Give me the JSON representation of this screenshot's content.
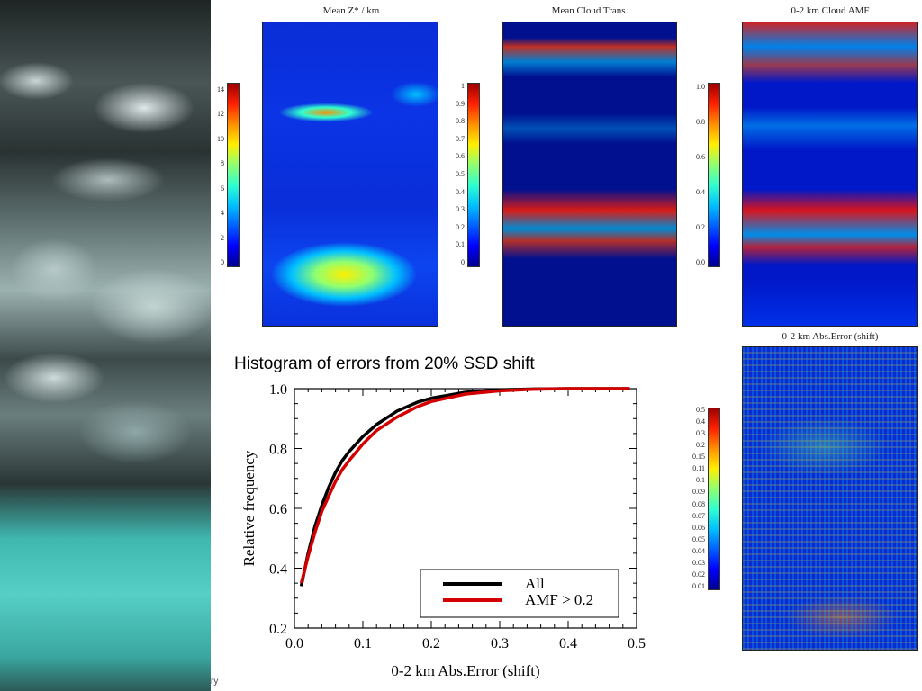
{
  "panels": {
    "mean_z": {
      "title": "Mean Z* / km",
      "ticks": [
        "14",
        "12",
        "10",
        "8",
        "6",
        "4",
        "2",
        "0"
      ]
    },
    "cloud_trans": {
      "title": "Mean Cloud Trans.",
      "ticks": [
        "1",
        "0.9",
        "0.8",
        "0.7",
        "0.6",
        "0.5",
        "0.4",
        "0.3",
        "0.2",
        "0.1",
        "0"
      ]
    },
    "cloud_amf": {
      "title": "0-2 km Cloud AMF",
      "ticks": [
        "1.0",
        "0.8",
        "0.6",
        "0.4",
        "0.2",
        "0.0"
      ]
    },
    "abs_error": {
      "title": "0-2 km Abs.Error (shift)",
      "ticks": [
        "0.5",
        "0.4",
        "0.3",
        "0.2",
        "0.15",
        "0.11",
        "0.1",
        "0.09",
        "0.08",
        "0.07",
        "0.06",
        "0.05",
        "0.04",
        "0.03",
        "0.02",
        "0.01"
      ]
    }
  },
  "colors": {
    "jet": [
      "#00008f",
      "#0000ff",
      "#0060ff",
      "#00c0ff",
      "#30ffcf",
      "#90ff70",
      "#ffef00",
      "#ff8f00",
      "#ff2000",
      "#9f0000"
    ]
  },
  "satellite_fragment": "ry",
  "chart_data": {
    "type": "line",
    "title": "Histogram of errors from 20% SSD shift",
    "xlabel": "0-2 km Abs.Error (shift)",
    "ylabel": "Relative frequency",
    "xlim": [
      0,
      0.5
    ],
    "ylim": [
      0.2,
      1.0
    ],
    "xticks": [
      "0.0",
      "0.1",
      "0.2",
      "0.3",
      "0.4",
      "0.5"
    ],
    "yticks": [
      "0.2",
      "0.4",
      "0.6",
      "0.8",
      "1.0"
    ],
    "legend_position": "bottom-right",
    "series": [
      {
        "name": "All",
        "color": "#000000",
        "x": [
          0.01,
          0.02,
          0.03,
          0.04,
          0.05,
          0.06,
          0.07,
          0.08,
          0.1,
          0.12,
          0.15,
          0.18,
          0.2,
          0.25,
          0.3,
          0.35,
          0.4,
          0.45,
          0.49
        ],
        "y": [
          0.34,
          0.45,
          0.54,
          0.61,
          0.67,
          0.72,
          0.76,
          0.79,
          0.84,
          0.88,
          0.925,
          0.955,
          0.968,
          0.988,
          0.996,
          0.999,
          1.0,
          1.0,
          1.0
        ]
      },
      {
        "name": "AMF > 0.2",
        "color": "#d40000",
        "x": [
          0.01,
          0.02,
          0.03,
          0.04,
          0.05,
          0.06,
          0.07,
          0.08,
          0.1,
          0.12,
          0.15,
          0.18,
          0.2,
          0.25,
          0.3,
          0.35,
          0.4,
          0.45,
          0.49
        ],
        "y": [
          0.35,
          0.44,
          0.52,
          0.59,
          0.64,
          0.69,
          0.73,
          0.76,
          0.815,
          0.86,
          0.905,
          0.94,
          0.957,
          0.982,
          0.993,
          0.998,
          1.0,
          1.0,
          1.0
        ]
      }
    ]
  }
}
